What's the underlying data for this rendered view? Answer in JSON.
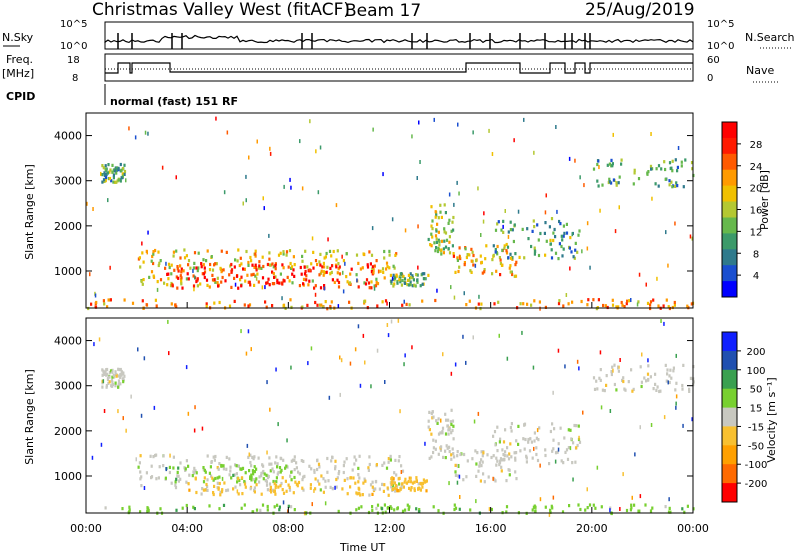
{
  "header": {
    "title": "Christmas Valley West (fitACF)",
    "beam": "Beam 17",
    "date": "25/Aug/2019"
  },
  "panels": {
    "nsky_label": "N.Sky",
    "nsky_ticks": [
      "10^5",
      "10^0"
    ],
    "nsearch_label": "N.Search",
    "nsearch_ticks": [
      "10^5",
      "10^0"
    ],
    "freq_label_1": "Freq.",
    "freq_label_2": "[MHz]",
    "freq_ticks": [
      "18",
      "8"
    ],
    "nave_label": "Nave",
    "nave_ticks": [
      "60",
      "0"
    ],
    "cpid_label": "CPID",
    "cpid_value": "normal (fast) 151 RF"
  },
  "chart_data": [
    {
      "type": "heatmap",
      "name": "power",
      "ylabel": "Slant Range [km]",
      "yticks": [
        "4000",
        "3000",
        "2000",
        "1000"
      ],
      "xlabel": "",
      "xticks": [],
      "ylim": [
        180,
        4500
      ],
      "colorbar_label": "Power [dB]",
      "colorbar_ticks": [
        "28",
        "24",
        "20",
        "16",
        "12",
        "8",
        "4"
      ],
      "colors": [
        "#0000ff",
        "#1a4fd0",
        "#2f7a8c",
        "#3c9a6a",
        "#66b84c",
        "#b4c832",
        "#f0c000",
        "#ff9a00",
        "#ff5a00",
        "#ff1a00",
        "#ff0000"
      ],
      "regions": [
        {
          "t": [
            0.6,
            1.5
          ],
          "r": [
            3000,
            3400
          ],
          "level": 0.35
        },
        {
          "t": [
            2.0,
            12.5
          ],
          "r": [
            700,
            1500
          ],
          "level": 0.6
        },
        {
          "t": [
            3.0,
            11.5
          ],
          "r": [
            650,
            1200
          ],
          "level": 0.95
        },
        {
          "t": [
            12.0,
            13.5
          ],
          "r": [
            700,
            1000
          ],
          "level": 0.4
        },
        {
          "t": [
            13.5,
            14.5
          ],
          "r": [
            1400,
            2500
          ],
          "level": 0.5
        },
        {
          "t": [
            14.5,
            17.0
          ],
          "r": [
            900,
            1600
          ],
          "level": 0.65
        },
        {
          "t": [
            16.0,
            19.5
          ],
          "r": [
            1300,
            2200
          ],
          "level": 0.35
        },
        {
          "t": [
            20.0,
            24.0
          ],
          "r": [
            2900,
            3500
          ],
          "level": 0.3
        },
        {
          "t": [
            0.0,
            24.0
          ],
          "r": [
            200,
            400
          ],
          "level": 0.7
        }
      ]
    },
    {
      "type": "heatmap",
      "name": "velocity",
      "ylabel": "Slant Range [km]",
      "yticks": [
        "4000",
        "3000",
        "2000",
        "1000"
      ],
      "xlabel": "Time UT",
      "xticks": [
        "00:00",
        "04:00",
        "08:00",
        "12:00",
        "16:00",
        "20:00",
        "00:00"
      ],
      "xlim": [
        0,
        24
      ],
      "ylim": [
        180,
        4500
      ],
      "colorbar_label": "Velocity [m s⁻¹]",
      "colorbar_ticks": [
        "200",
        "100",
        "50",
        "15",
        "-15",
        "-50",
        "-100",
        "-200"
      ],
      "colors": [
        "#ff0000",
        "#ff6a00",
        "#ffa000",
        "#f8c030",
        "#c8c8c0",
        "#78d030",
        "#3aa050",
        "#2050b0",
        "#1020ff"
      ],
      "regions": [
        {
          "t": [
            0.6,
            1.5
          ],
          "r": [
            3000,
            3400
          ],
          "v": 4
        },
        {
          "t": [
            2.0,
            12.5
          ],
          "r": [
            700,
            1500
          ],
          "v": 4
        },
        {
          "t": [
            3.0,
            8.5
          ],
          "r": [
            900,
            1300
          ],
          "v": 5
        },
        {
          "t": [
            4.0,
            12.0
          ],
          "r": [
            600,
            1000
          ],
          "v": 3
        },
        {
          "t": [
            12.0,
            13.5
          ],
          "r": [
            700,
            1000
          ],
          "v": 3
        },
        {
          "t": [
            13.5,
            14.5
          ],
          "r": [
            1400,
            2500
          ],
          "v": 4
        },
        {
          "t": [
            14.5,
            17.0
          ],
          "r": [
            900,
            1600
          ],
          "v": 4
        },
        {
          "t": [
            16.0,
            19.5
          ],
          "r": [
            1300,
            2200
          ],
          "v": 4
        },
        {
          "t": [
            20.0,
            24.0
          ],
          "r": [
            2900,
            3500
          ],
          "v": 4
        },
        {
          "t": [
            0.0,
            24.0
          ],
          "r": [
            200,
            400
          ],
          "v": 5
        }
      ]
    }
  ]
}
